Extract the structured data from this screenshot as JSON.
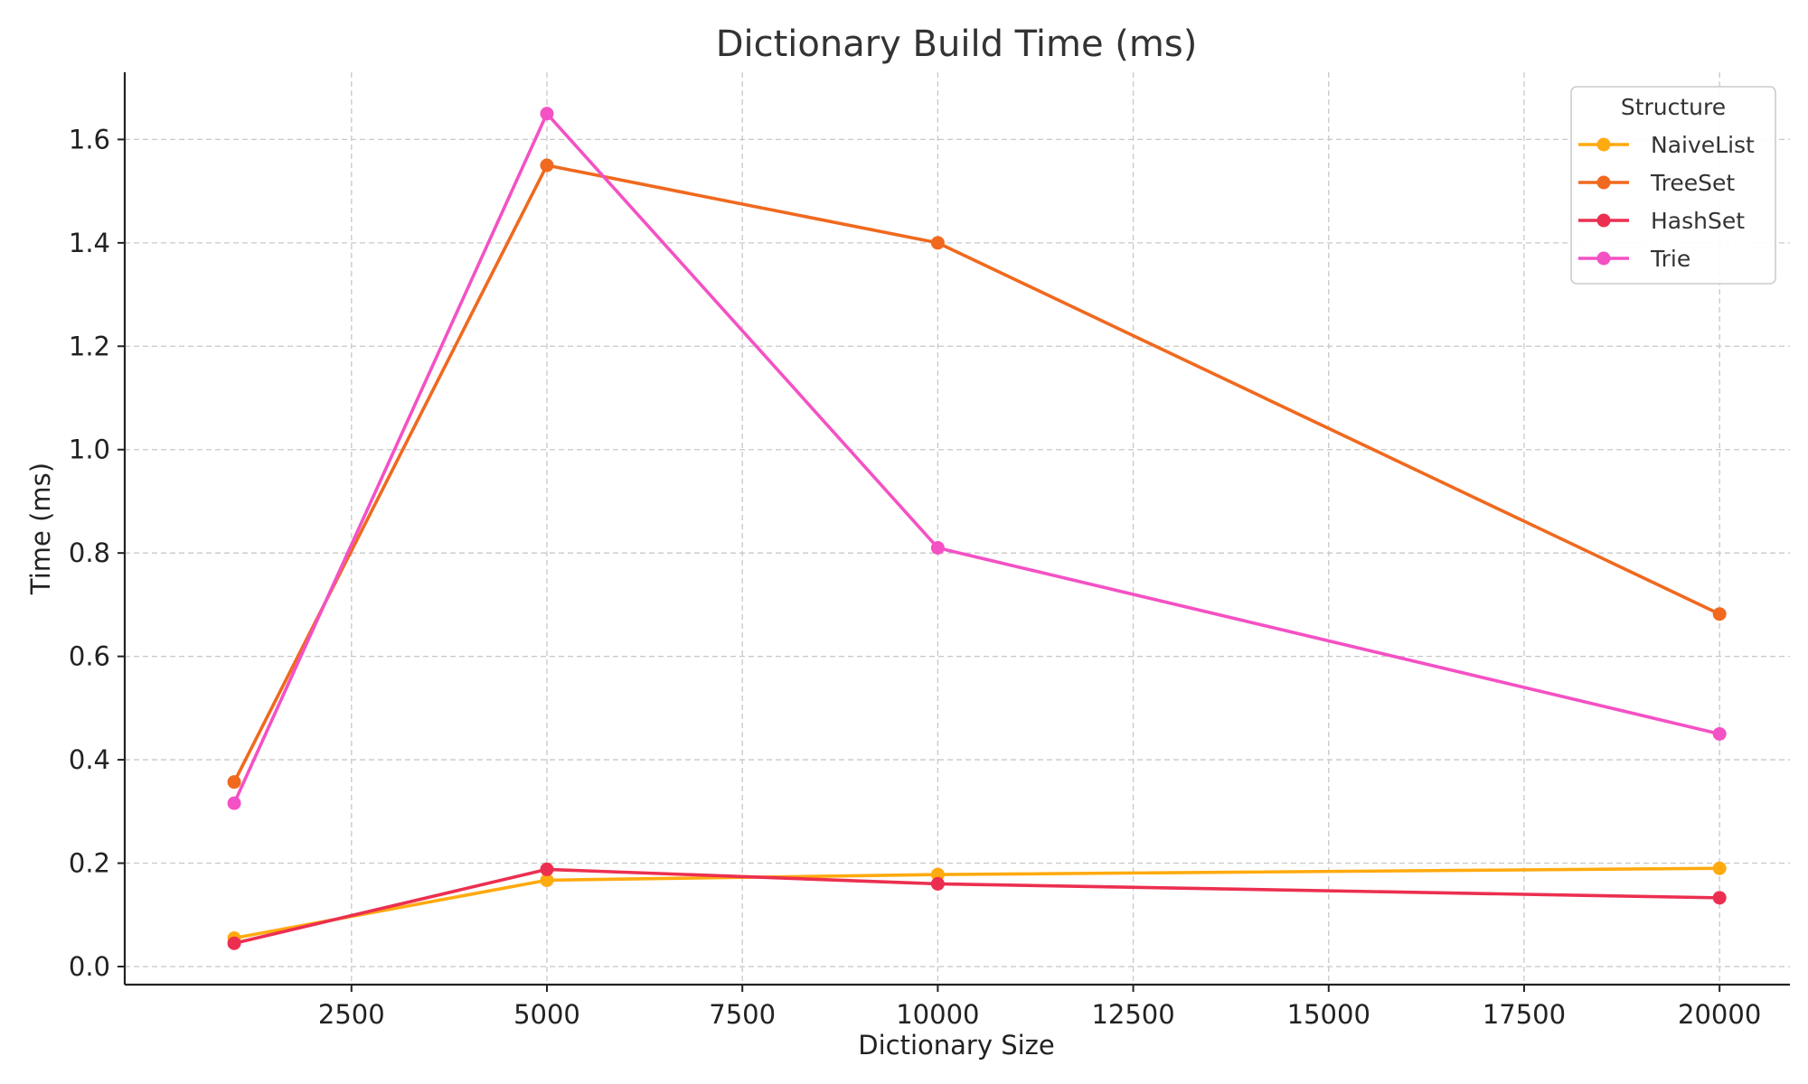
{
  "chart_data": {
    "type": "line",
    "title": "Dictionary Build Time (ms)",
    "xlabel": "Dictionary Size",
    "ylabel": "Time (ms)",
    "x": [
      1000,
      5000,
      10000,
      20000
    ],
    "xlim": [
      -400,
      20900
    ],
    "ylim": [
      -0.035,
      1.73
    ],
    "xticks": [
      2500,
      5000,
      7500,
      10000,
      12500,
      15000,
      17500,
      20000
    ],
    "xtick_labels": [
      "2500",
      "5000",
      "7500",
      "10000",
      "12500",
      "15000",
      "17500",
      "20000"
    ],
    "yticks": [
      0.0,
      0.2,
      0.4,
      0.6,
      0.8,
      1.0,
      1.2,
      1.4,
      1.6
    ],
    "ytick_labels": [
      "0.0",
      "0.2",
      "0.4",
      "0.6",
      "0.8",
      "1.0",
      "1.2",
      "1.4",
      "1.6"
    ],
    "grid": true,
    "legend": {
      "title": "Structure",
      "position": "top-right"
    },
    "series": [
      {
        "name": "NaiveList",
        "color": "#FFAA0F",
        "values": [
          0.055,
          0.167,
          0.178,
          0.19
        ]
      },
      {
        "name": "TreeSet",
        "color": "#F0691E",
        "values": [
          0.357,
          1.55,
          1.4,
          0.682
        ]
      },
      {
        "name": "HashSet",
        "color": "#EC2F50",
        "values": [
          0.045,
          0.188,
          0.16,
          0.133
        ]
      },
      {
        "name": "Trie",
        "color": "#F451C4",
        "values": [
          0.316,
          1.65,
          0.81,
          0.45
        ]
      }
    ]
  }
}
